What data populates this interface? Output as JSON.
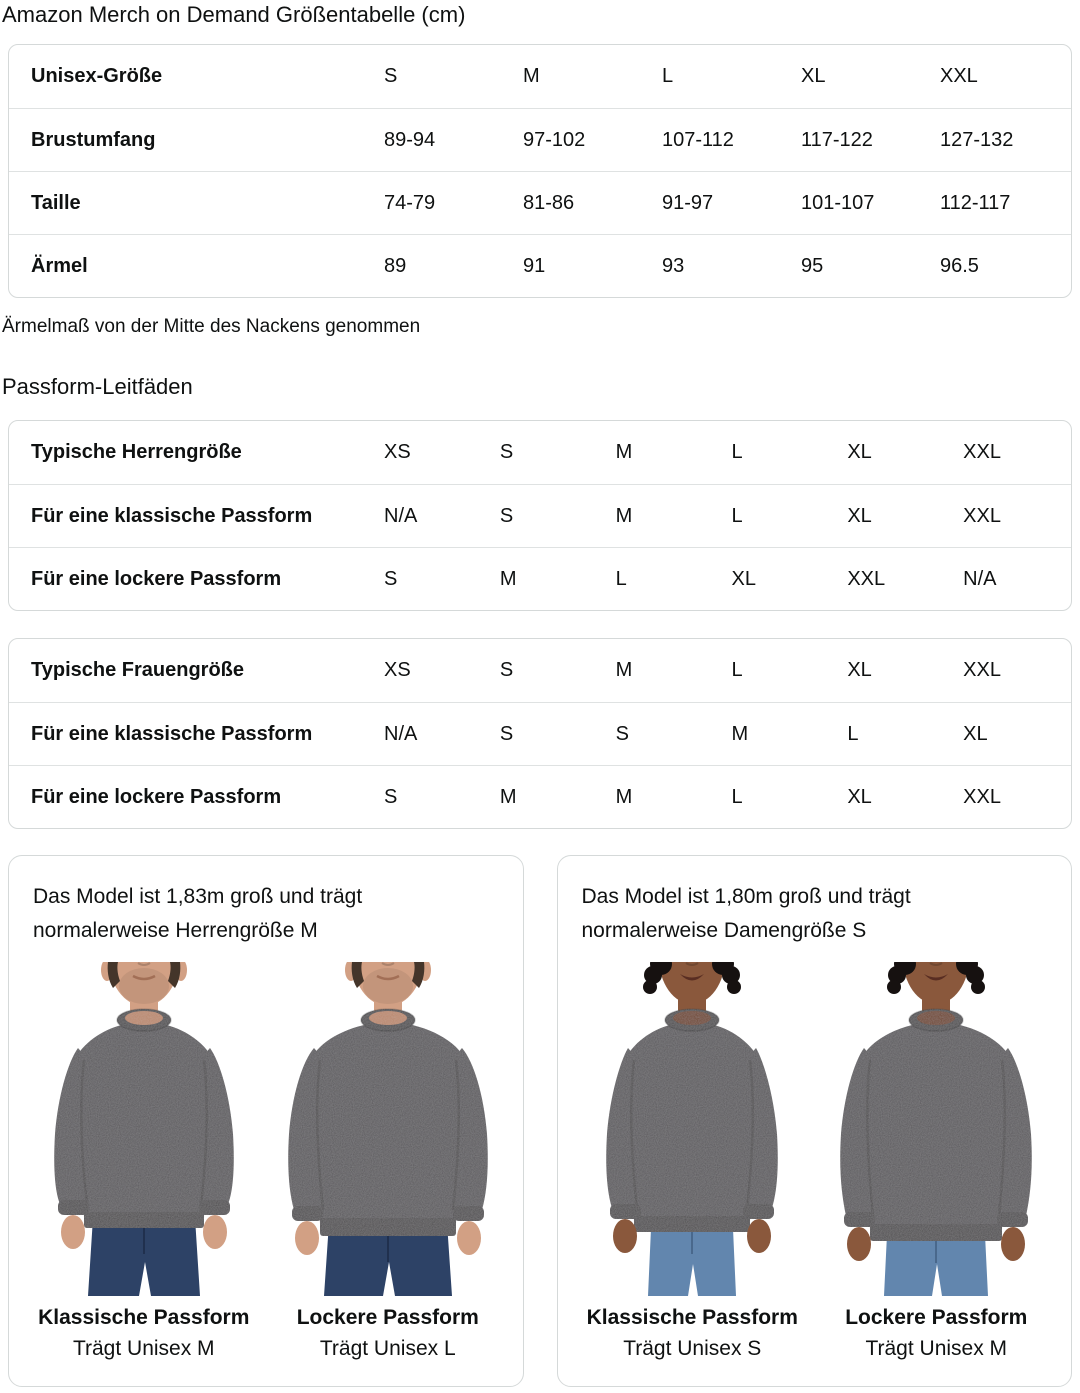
{
  "page": {
    "title": "Amazon Merch on Demand Größentabelle (cm)"
  },
  "size_table": {
    "header": {
      "label": "Unisex-Größe",
      "cols": [
        "S",
        "M",
        "L",
        "XL",
        "XXL"
      ]
    },
    "rows": [
      {
        "label": "Brustumfang",
        "values": [
          "89-94",
          "97-102",
          "107-112",
          "117-122",
          "127-132"
        ]
      },
      {
        "label": "Taille",
        "values": [
          "74-79",
          "81-86",
          "91-97",
          "101-107",
          "112-117"
        ]
      },
      {
        "label": "Ärmel",
        "values": [
          "89",
          "91",
          "93",
          "95",
          "96.5"
        ]
      }
    ],
    "footnote": "Ärmelmaß von der Mitte des Nackens genommen"
  },
  "fit_guides": {
    "heading": "Passform-Leitfäden",
    "tables": [
      {
        "header": {
          "label": "Typische Herrengröße",
          "cols": [
            "XS",
            "S",
            "M",
            "L",
            "XL",
            "XXL"
          ]
        },
        "rows": [
          {
            "label": "Für eine klassische Passform",
            "values": [
              "N/A",
              "S",
              "M",
              "L",
              "XL",
              "XXL"
            ]
          },
          {
            "label": "Für eine lockere Passform",
            "values": [
              "S",
              "M",
              "L",
              "XL",
              "XXL",
              "N/A"
            ]
          }
        ]
      },
      {
        "header": {
          "label": "Typische Frauengröße",
          "cols": [
            "XS",
            "S",
            "M",
            "L",
            "XL",
            "XXL"
          ]
        },
        "rows": [
          {
            "label": "Für eine klassische Passform",
            "values": [
              "N/A",
              "S",
              "S",
              "M",
              "L",
              "XL"
            ]
          },
          {
            "label": "Für eine lockere Passform",
            "values": [
              "S",
              "M",
              "M",
              "L",
              "XL",
              "XXL"
            ]
          }
        ]
      }
    ]
  },
  "model_cards": [
    {
      "description": "Das Model ist 1,83m groß und trägt normalerweise Herrengröße M",
      "photos": [
        {
          "fit_label": "Klassische Passform",
          "size_label": "Trägt Unisex M",
          "model": "male-classic"
        },
        {
          "fit_label": "Lockere Passform",
          "size_label": "Trägt Unisex L",
          "model": "male-loose"
        }
      ]
    },
    {
      "description": "Das Model ist 1,80m groß und trägt normalerweise Damengröße S",
      "photos": [
        {
          "fit_label": "Klassische Passform",
          "size_label": "Trägt Unisex S",
          "model": "female-classic"
        },
        {
          "fit_label": "Lockere Passform",
          "size_label": "Trägt Unisex M",
          "model": "female-loose"
        }
      ]
    }
  ],
  "colors": {
    "text": "#0f1111",
    "table_border": "#d5d9d9",
    "row_divider": "#dfe2e2",
    "sweatshirt": "#59575a",
    "sweatshirt_rib": "#4d4b4e",
    "jeans_men": "#2d4266",
    "jeans_women": "#6286ae"
  }
}
